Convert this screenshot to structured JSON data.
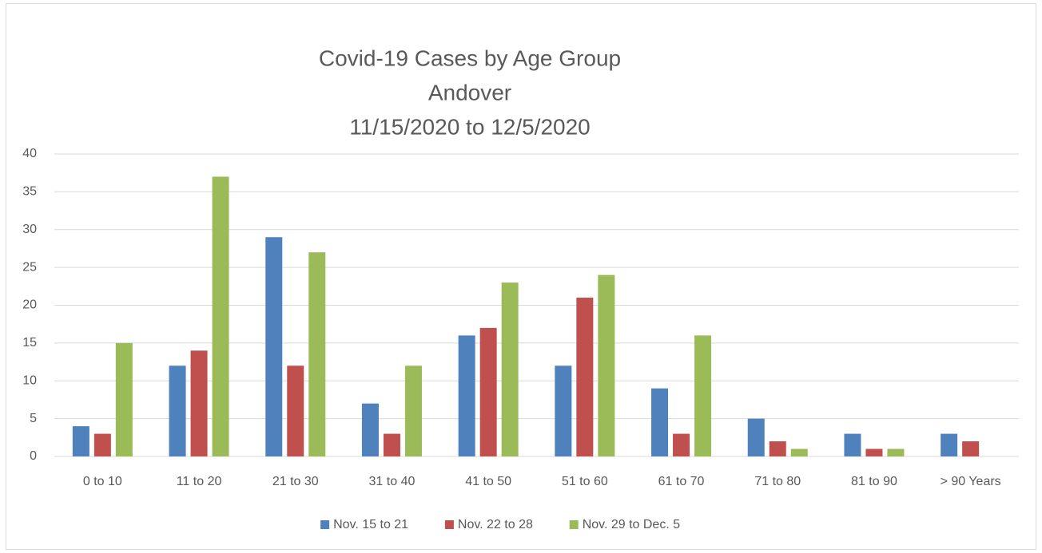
{
  "chart_data": {
    "type": "bar",
    "title": [
      "Covid-19 Cases by Age Group",
      "Andover",
      "11/15/2020 to 12/5/2020"
    ],
    "categories": [
      "0 to 10",
      "11 to 20",
      "21 to 30",
      "31 to 40",
      "41 to 50",
      "51 to 60",
      "61 to 70",
      "71 to 80",
      "81 to 90",
      "> 90 Years"
    ],
    "series": [
      {
        "name": "Nov. 15 to 21",
        "color": "#4f81bd",
        "values": [
          4,
          12,
          29,
          7,
          16,
          12,
          9,
          5,
          3,
          3
        ]
      },
      {
        "name": "Nov. 22 to 28",
        "color": "#c0504d",
        "values": [
          3,
          14,
          12,
          3,
          17,
          21,
          3,
          2,
          1,
          2
        ]
      },
      {
        "name": "Nov. 29 to Dec. 5",
        "color": "#9bbb59",
        "values": [
          15,
          37,
          27,
          12,
          23,
          24,
          16,
          1,
          1,
          0
        ]
      }
    ],
    "ylim": [
      0,
      40
    ],
    "yticks": [
      0,
      5,
      10,
      15,
      20,
      25,
      30,
      35,
      40
    ],
    "grid": true,
    "legend": "bottom"
  }
}
